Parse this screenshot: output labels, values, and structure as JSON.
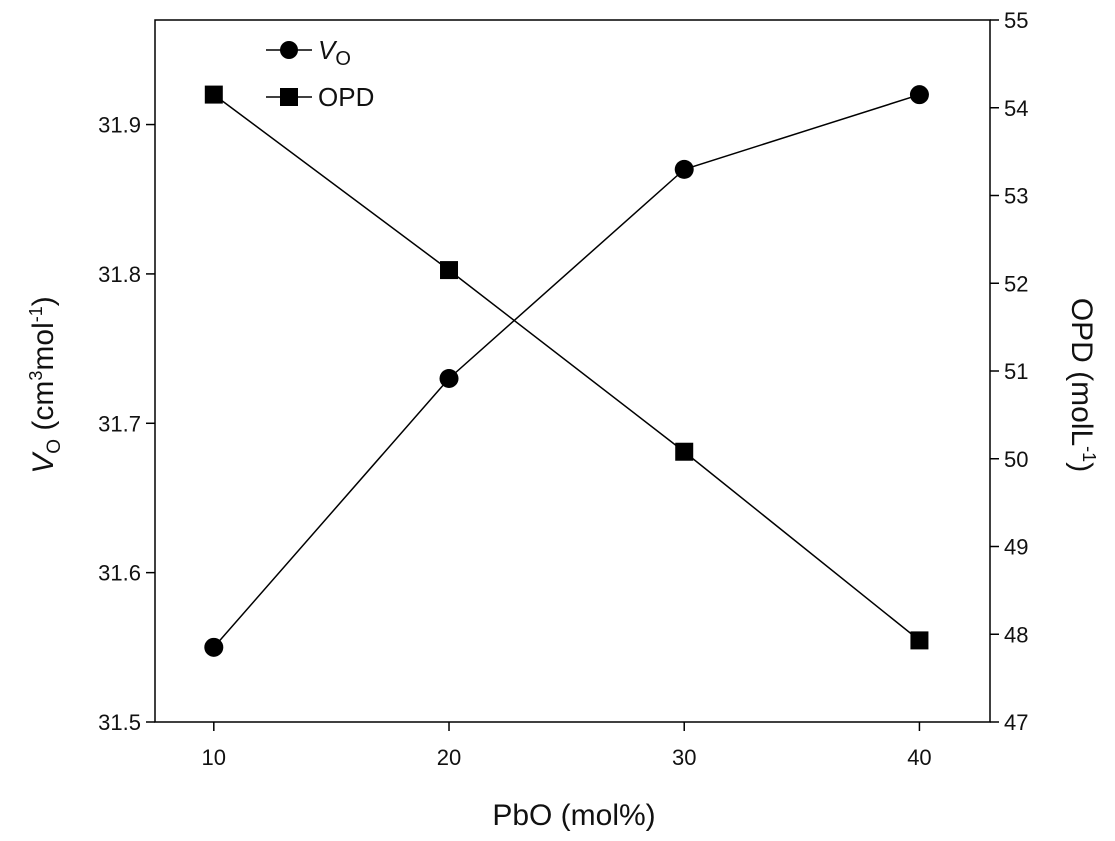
{
  "chart_data": {
    "type": "line",
    "title": "",
    "x": [
      10,
      20,
      30,
      40
    ],
    "xlabel": "PbO (mol%)",
    "xlim": [
      7.5,
      43
    ],
    "xticks": [
      10,
      20,
      30,
      40
    ],
    "ylabel_left": {
      "main": "V",
      "sub": "O",
      "rest": " (cm",
      "sup": "3",
      "rest2": "mol",
      "sup2": "-1",
      "end": ")"
    },
    "ylabel_right": {
      "main": "OPD (molL",
      "sup": "-1",
      "end": ")"
    },
    "ylim_left": [
      31.5,
      31.97
    ],
    "ylim_right": [
      47,
      55
    ],
    "yticks_left": [
      "31.5",
      "31.6",
      "31.7",
      "31.8",
      "31.9"
    ],
    "yticks_right": [
      "47",
      "48",
      "49",
      "50",
      "51",
      "52",
      "53",
      "54",
      "55"
    ],
    "grid": false,
    "legend_position": "top-left",
    "series": [
      {
        "name": "V_O",
        "legend_main": "V",
        "legend_sub": "O",
        "axis": "left",
        "marker": "circle",
        "values": [
          31.55,
          31.73,
          31.87,
          31.92
        ]
      },
      {
        "name": "OPD",
        "legend_main": "OPD",
        "axis": "right",
        "marker": "square",
        "values": [
          54.15,
          52.15,
          50.08,
          47.93
        ]
      }
    ]
  }
}
